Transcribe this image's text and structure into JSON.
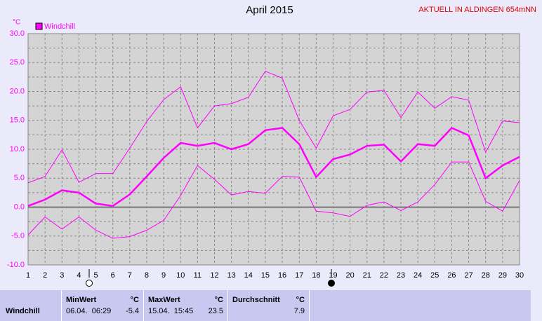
{
  "chart_data": {
    "type": "line",
    "title": "April 2015",
    "subtitle": "AKTUELL IN ALDINGEN 654mNN",
    "y_label": "°C",
    "x": [
      1,
      2,
      3,
      4,
      5,
      6,
      7,
      8,
      9,
      10,
      11,
      12,
      13,
      14,
      15,
      16,
      17,
      18,
      19,
      20,
      21,
      22,
      23,
      24,
      25,
      26,
      27,
      28,
      29,
      30
    ],
    "xlim": [
      1,
      30
    ],
    "xticks": [
      1,
      2,
      3,
      4,
      5,
      6,
      7,
      8,
      9,
      10,
      11,
      12,
      13,
      14,
      15,
      16,
      17,
      18,
      19,
      20,
      21,
      22,
      23,
      24,
      25,
      26,
      27,
      28,
      29,
      30
    ],
    "ylim": [
      -10,
      30
    ],
    "yticks": [
      {
        "value": -10,
        "label": "-10.0"
      },
      {
        "value": -5,
        "label": "-5.0"
      },
      {
        "value": 0,
        "label": "0.0"
      },
      {
        "value": 5,
        "label": "5.0"
      },
      {
        "value": 10,
        "label": "10.0"
      },
      {
        "value": 15,
        "label": "15.0"
      },
      {
        "value": 20,
        "label": "20.0"
      },
      {
        "value": 25,
        "label": "25.0"
      },
      {
        "value": 30,
        "label": "30.0"
      }
    ],
    "minor_yticks": [
      -7.5,
      -2.5,
      2.5,
      7.5,
      12.5,
      17.5,
      22.5,
      27.5
    ],
    "grid": true,
    "series": [
      {
        "name": "Windchill",
        "color": "#ff00ff",
        "values": [
          0.2,
          1.3,
          2.9,
          2.5,
          0.6,
          0.2,
          2.2,
          5.3,
          8.5,
          11.1,
          10.6,
          11.1,
          10.0,
          10.9,
          13.3,
          13.7,
          10.9,
          5.2,
          8.3,
          9.1,
          10.6,
          10.8,
          7.9,
          10.9,
          10.6,
          13.7,
          12.4,
          5.0,
          7.2,
          8.7
        ],
        "high": [
          4.2,
          5.3,
          9.9,
          4.3,
          5.8,
          5.8,
          10.2,
          14.8,
          18.6,
          20.8,
          13.7,
          17.5,
          17.9,
          19.0,
          23.5,
          22.3,
          15.0,
          10.2,
          15.8,
          16.9,
          19.9,
          20.2,
          15.5,
          19.9,
          17.1,
          19.1,
          18.5,
          9.5,
          14.9,
          14.6
        ],
        "low": [
          -4.8,
          -1.7,
          -3.8,
          -1.7,
          -4.0,
          -5.4,
          -5.1,
          -4.0,
          -2.3,
          2.0,
          7.2,
          4.8,
          2.1,
          2.7,
          2.4,
          5.3,
          5.2,
          -0.7,
          -1.0,
          -1.6,
          0.3,
          0.9,
          -0.6,
          0.9,
          3.9,
          7.8,
          7.8,
          1.0,
          -0.7,
          4.6
        ]
      }
    ]
  },
  "summary": {
    "row_label": "Windchill",
    "columns": [
      {
        "title": "MinWert",
        "unit": "°C",
        "date": "06.04.  06:29",
        "value": "-5.4"
      },
      {
        "title": "MaxWert",
        "unit": "°C",
        "date": "15.04.  15:45",
        "value": "23.5"
      },
      {
        "title": "Durchschnitt",
        "unit": "°C",
        "value": "7.9"
      }
    ]
  }
}
